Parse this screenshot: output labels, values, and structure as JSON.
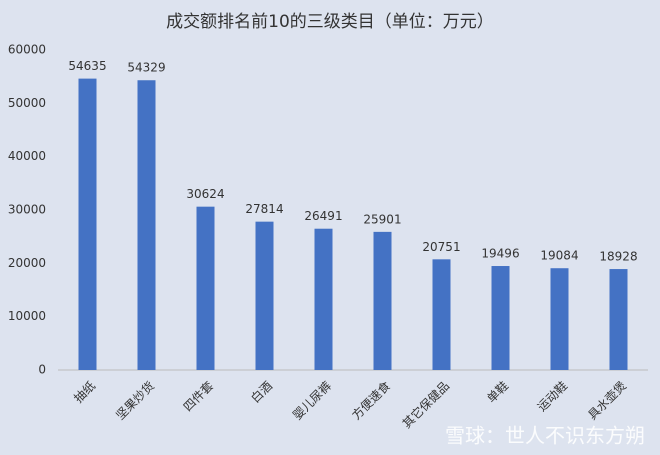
{
  "chart_data": {
    "type": "bar",
    "title": "成交额排名前10的三级类目（单位：万元）",
    "categories": [
      "抽纸",
      "坚果炒货",
      "四件套",
      "白酒",
      "婴儿尿裤",
      "方便速食",
      "其它保健品",
      "单鞋",
      "运动鞋",
      "具水壶煲"
    ],
    "values": [
      54635,
      54329,
      30624,
      27814,
      26491,
      25901,
      20751,
      19496,
      19084,
      18928
    ],
    "color": "#4472c4",
    "ylim": [
      0,
      60000
    ],
    "yticks": [
      0,
      10000,
      20000,
      30000,
      40000,
      50000,
      60000
    ],
    "grid": false
  },
  "watermark": "雪球：世人不识东方朔"
}
